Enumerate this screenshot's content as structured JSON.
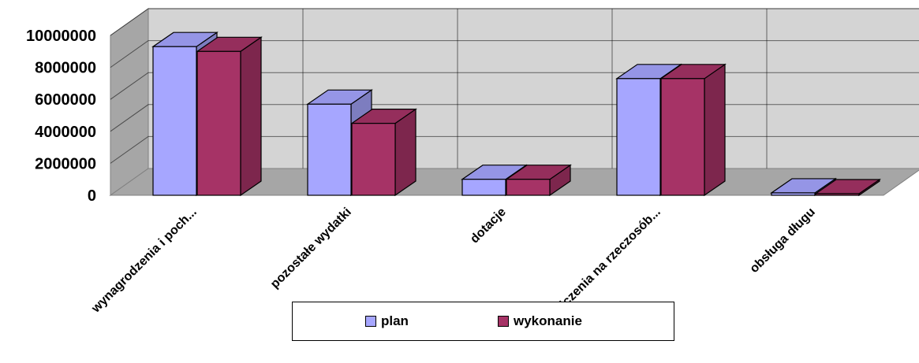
{
  "chart_data": {
    "type": "bar",
    "categories": [
      "wynagrodzenia i poch...",
      "pozostałe wydatki",
      "dotacje",
      "świadczenia na rzeczosób...",
      "obsługa długu"
    ],
    "series": [
      {
        "name": "plan",
        "values": [
          9300000,
          5700000,
          1000000,
          7300000,
          150000
        ],
        "color": "#a6a6ff"
      },
      {
        "name": "wykonanie",
        "values": [
          9000000,
          4500000,
          1000000,
          7300000,
          100000
        ],
        "color": "#a63366"
      }
    ],
    "y_ticks": [
      "0",
      "2000000",
      "4000000",
      "6000000",
      "8000000",
      "10000000"
    ],
    "ylim": [
      0,
      10000000
    ],
    "grid": true,
    "legend_position": "bottom",
    "style": "3d-clustered-column"
  }
}
